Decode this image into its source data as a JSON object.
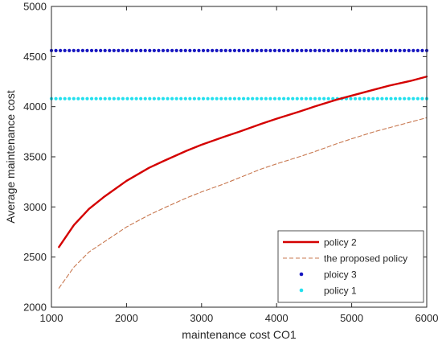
{
  "chart_data": {
    "type": "line",
    "title": "",
    "xlabel": "maintenance cost CO1",
    "ylabel": "Average maintenance cost",
    "xlim": [
      1000,
      6000
    ],
    "ylim": [
      2000,
      5000
    ],
    "xticks": [
      1000,
      2000,
      3000,
      4000,
      5000,
      6000
    ],
    "yticks": [
      2000,
      2500,
      3000,
      3500,
      4000,
      4500,
      5000
    ],
    "grid": false,
    "legend_position": "bottom-right",
    "series": [
      {
        "name": "policy 2",
        "style": "solid",
        "color": "#d40000",
        "x": [
          1100,
          1300,
          1500,
          1700,
          2000,
          2300,
          2500,
          2800,
          3000,
          3300,
          3500,
          3800,
          4000,
          4300,
          4500,
          4800,
          5000,
          5300,
          5500,
          5800,
          6000
        ],
        "y": [
          2600,
          2820,
          2980,
          3100,
          3260,
          3390,
          3460,
          3560,
          3620,
          3700,
          3750,
          3830,
          3880,
          3950,
          4000,
          4070,
          4110,
          4170,
          4210,
          4260,
          4300
        ]
      },
      {
        "name": "the proposed policy",
        "style": "dashed",
        "color": "#c87850",
        "x": [
          1100,
          1300,
          1500,
          1700,
          2000,
          2300,
          2500,
          2800,
          3000,
          3300,
          3500,
          3800,
          4000,
          4300,
          4500,
          4800,
          5000,
          5300,
          5500,
          5800,
          6000
        ],
        "y": [
          2190,
          2400,
          2550,
          2650,
          2800,
          2920,
          2990,
          3090,
          3150,
          3230,
          3290,
          3380,
          3430,
          3500,
          3550,
          3630,
          3680,
          3750,
          3790,
          3850,
          3890
        ]
      },
      {
        "name": "ploicy 3",
        "style": "dots",
        "color": "#1515c0",
        "x": [
          1000,
          6000
        ],
        "y": [
          4560,
          4560
        ]
      },
      {
        "name": "policy 1",
        "style": "dots",
        "color": "#22e0ee",
        "x": [
          1000,
          6000
        ],
        "y": [
          4080,
          4080
        ]
      }
    ]
  }
}
